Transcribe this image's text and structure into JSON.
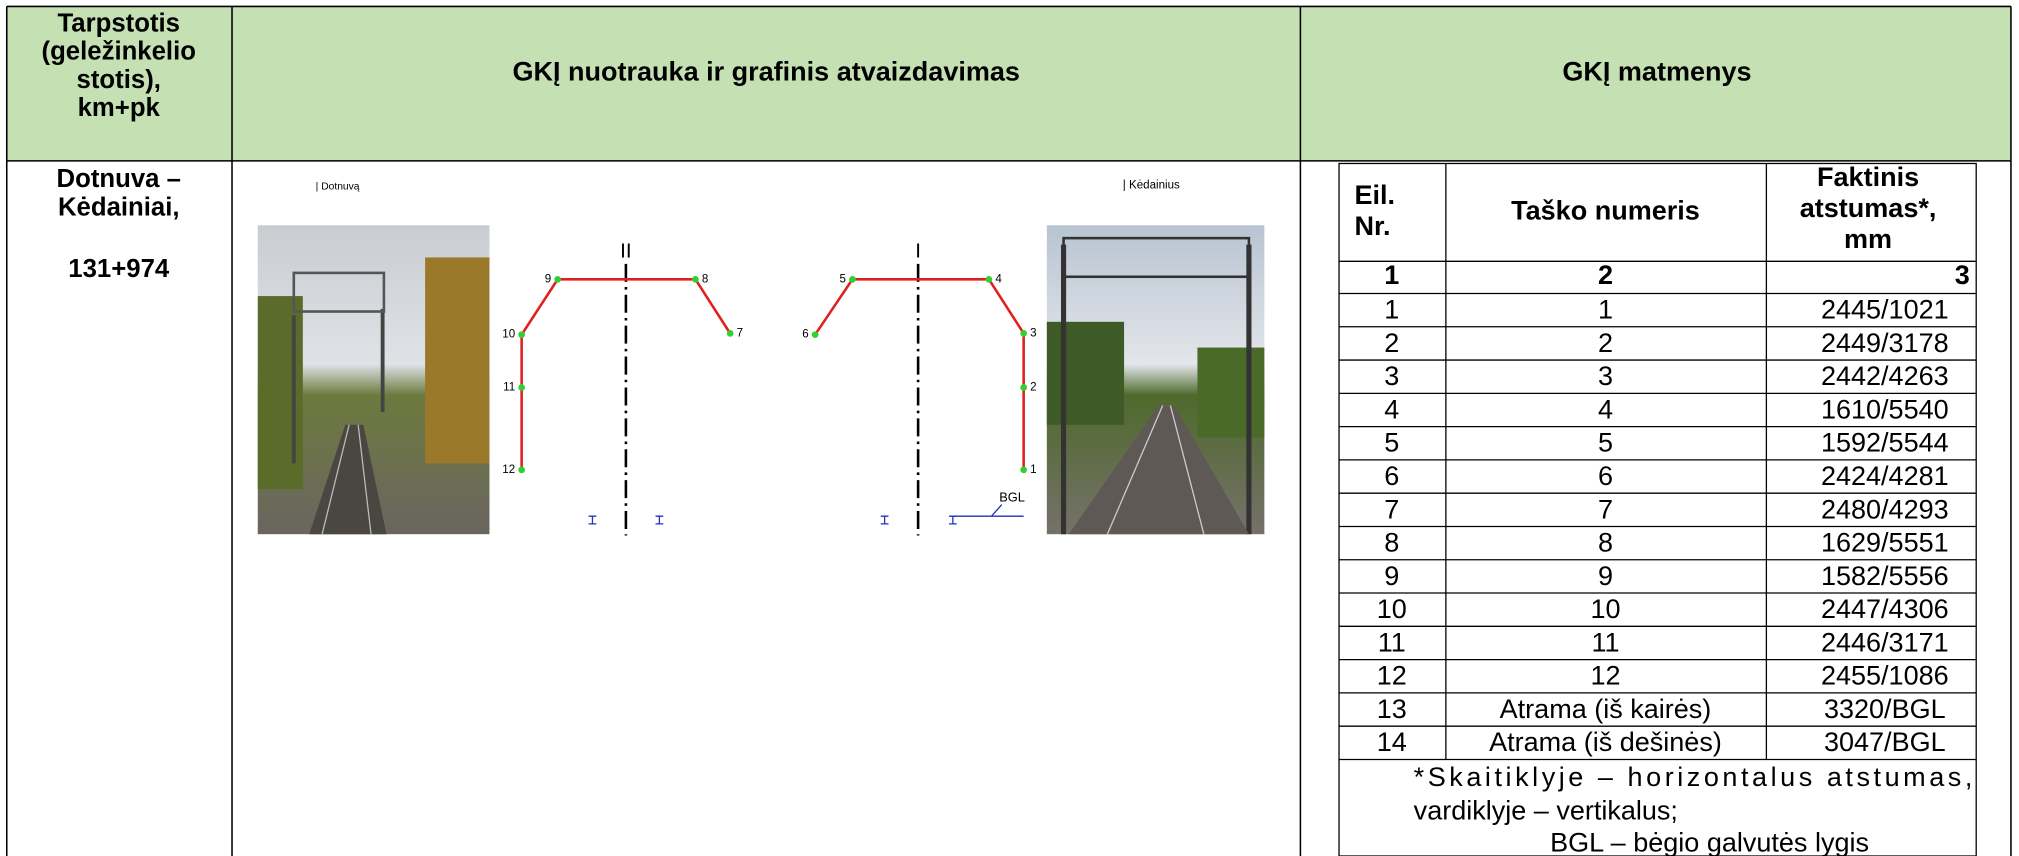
{
  "header": {
    "station": [
      "Tarpstotis",
      "(geležinkelio",
      "stotis),",
      "km+pk"
    ],
    "diagram": "GKĮ nuotrauka ir grafinis atvaizdavimas",
    "dimensions": "GKĮ matmenys"
  },
  "row": {
    "station": [
      "Dotnuva –",
      "Kėdainiai,"
    ],
    "km": "131+974"
  },
  "diagram": {
    "left_caption": "| Dotnuvą",
    "right_caption": "| Kėdainius",
    "left_track": "II",
    "right_track": "I",
    "points": [
      "1",
      "2",
      "3",
      "4",
      "5",
      "6",
      "7",
      "8",
      "9",
      "10",
      "11",
      "12"
    ],
    "bgl": "BGL"
  },
  "table": {
    "headers": [
      [
        "Eil.",
        "Nr."
      ],
      [
        "Taško numeris"
      ],
      [
        "Faktinis",
        "atstumas*,",
        "mm"
      ]
    ],
    "column_numbers": [
      "1",
      "2",
      "3"
    ],
    "rows": [
      [
        "1",
        "1",
        "2445/1021"
      ],
      [
        "2",
        "2",
        "2449/3178"
      ],
      [
        "3",
        "3",
        "2442/4263"
      ],
      [
        "4",
        "4",
        "1610/5540"
      ],
      [
        "5",
        "5",
        "1592/5544"
      ],
      [
        "6",
        "6",
        "2424/4281"
      ],
      [
        "7",
        "7",
        "2480/4293"
      ],
      [
        "8",
        "8",
        "1629/5551"
      ],
      [
        "9",
        "9",
        "1582/5556"
      ],
      [
        "10",
        "10",
        "2447/4306"
      ],
      [
        "11",
        "11",
        "2446/3171"
      ],
      [
        "12",
        "12",
        "2455/1086"
      ],
      [
        "13",
        "Atrama (iš kairės)",
        "3320/BGL"
      ],
      [
        "14",
        "Atrama (iš dešinės)",
        "3047/BGL"
      ]
    ],
    "note": [
      "*Skaitiklyje – horizontalus atstumas,",
      "vardiklyje – vertikalus;",
      "BGL – bėgio galvutės lygis"
    ]
  }
}
